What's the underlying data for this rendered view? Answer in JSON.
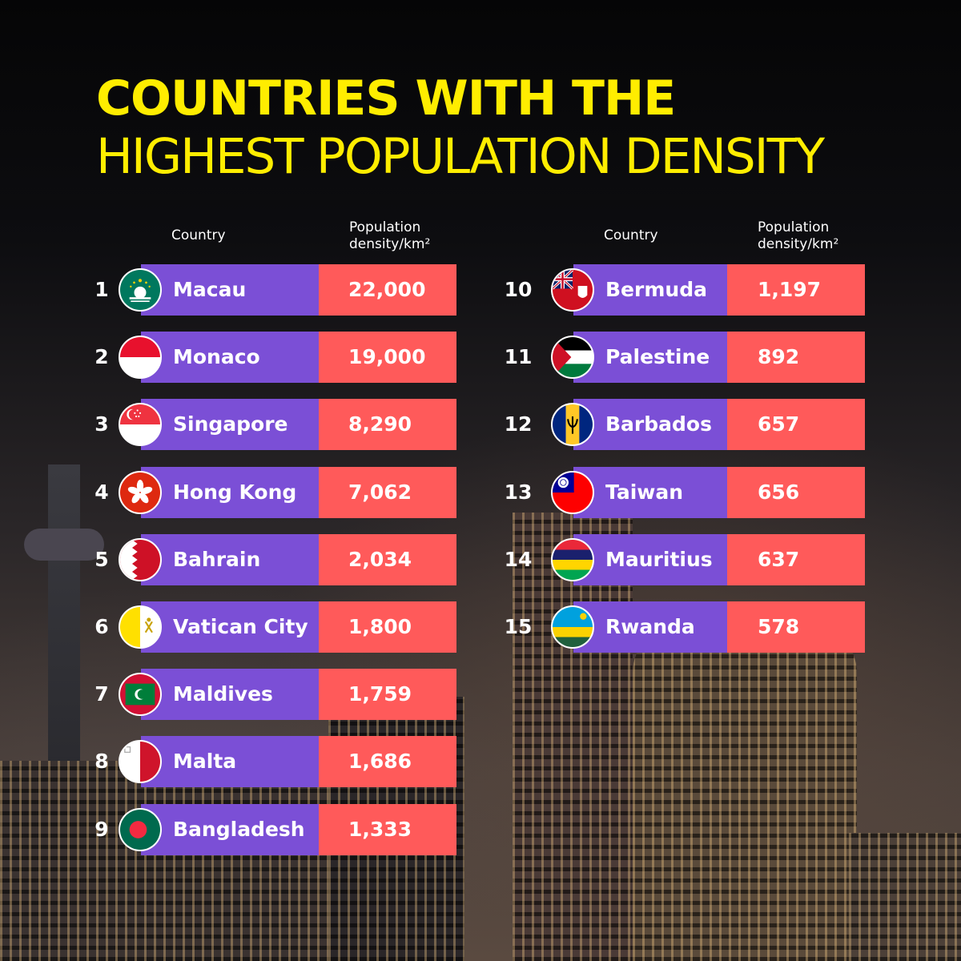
{
  "title": {
    "line1": "COUNTRIES WITH THE",
    "line2": "HIGHEST POPULATION DENSITY"
  },
  "headers": {
    "country": "Country",
    "density_line1": "Population",
    "density_line2": "density/km²"
  },
  "colors": {
    "title": "#ffed00",
    "name_bar": "#7b4fd6",
    "value_bar": "#ff5a5a"
  },
  "chart_data": {
    "type": "table",
    "title": "COUNTRIES WITH THE HIGHEST POPULATION DENSITY",
    "columns": [
      "Country",
      "Population density/km²"
    ],
    "rows": [
      {
        "rank": "1",
        "country": "Macau",
        "density": "22,000",
        "flag": "macau-flag-icon"
      },
      {
        "rank": "2",
        "country": "Monaco",
        "density": "19,000",
        "flag": "monaco-flag-icon"
      },
      {
        "rank": "3",
        "country": "Singapore",
        "density": "8,290",
        "flag": "singapore-flag-icon"
      },
      {
        "rank": "4",
        "country": "Hong Kong",
        "density": "7,062",
        "flag": "hong-kong-flag-icon"
      },
      {
        "rank": "5",
        "country": "Bahrain",
        "density": "2,034",
        "flag": "bahrain-flag-icon"
      },
      {
        "rank": "6",
        "country": "Vatican City",
        "density": "1,800",
        "flag": "vatican-flag-icon"
      },
      {
        "rank": "7",
        "country": "Maldives",
        "density": "1,759",
        "flag": "maldives-flag-icon"
      },
      {
        "rank": "8",
        "country": "Malta",
        "density": "1,686",
        "flag": "malta-flag-icon"
      },
      {
        "rank": "9",
        "country": "Bangladesh",
        "density": "1,333",
        "flag": "bangladesh-flag-icon"
      },
      {
        "rank": "10",
        "country": "Bermuda",
        "density": "1,197",
        "flag": "bermuda-flag-icon"
      },
      {
        "rank": "11",
        "country": "Palestine",
        "density": "892",
        "flag": "palestine-flag-icon"
      },
      {
        "rank": "12",
        "country": "Barbados",
        "density": "657",
        "flag": "barbados-flag-icon"
      },
      {
        "rank": "13",
        "country": "Taiwan",
        "density": "656",
        "flag": "taiwan-flag-icon"
      },
      {
        "rank": "14",
        "country": "Mauritius",
        "density": "637",
        "flag": "mauritius-flag-icon"
      },
      {
        "rank": "15",
        "country": "Rwanda",
        "density": "578",
        "flag": "rwanda-flag-icon"
      }
    ]
  }
}
